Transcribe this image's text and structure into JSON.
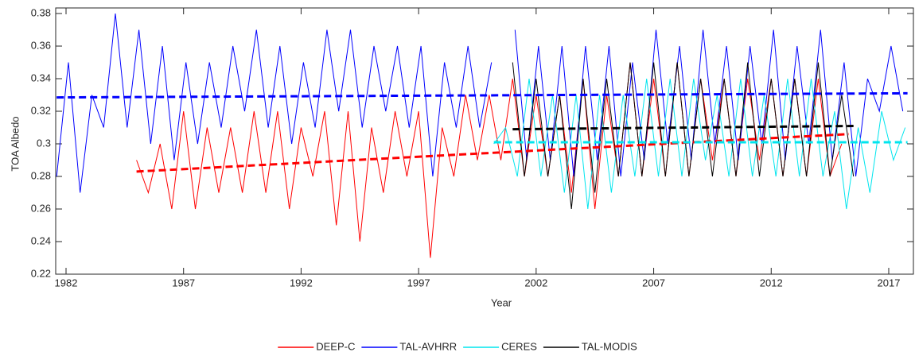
{
  "chart_data": {
    "type": "line",
    "x_label": "Year",
    "y_label": "TOA Albedo",
    "xlim": [
      1981.56,
      2018.05
    ],
    "ylim": [
      0.22,
      0.38
    ],
    "xticks": [
      1982,
      1987,
      1992,
      1997,
      2002,
      2007,
      2012,
      2017
    ],
    "yticks": [
      0.22,
      0.24,
      0.26,
      0.28,
      0.3,
      0.32,
      0.34,
      0.36,
      0.38
    ],
    "grid": false,
    "legend": "bottom",
    "series": [
      {
        "name": "DEEP-C",
        "color": "#ff0000",
        "x": [
          1985.0,
          1985.5,
          1986.0,
          1986.5,
          1987.0,
          1987.5,
          1988.0,
          1988.5,
          1989.0,
          1989.5,
          1990.0,
          1990.5,
          1991.0,
          1991.5,
          1992.0,
          1992.5,
          1993.0,
          1993.5,
          1994.0,
          1994.5,
          1995.0,
          1995.5,
          1996.0,
          1996.5,
          1997.0,
          1997.5,
          1998.0,
          1998.5,
          1999.0,
          1999.5,
          2000.0,
          2000.5,
          2001.0,
          2001.5,
          2002.0,
          2002.5,
          2003.0,
          2003.5,
          2004.0,
          2004.5,
          2005.0,
          2005.5,
          2006.0,
          2006.5,
          2007.0,
          2007.5,
          2008.0,
          2008.5,
          2009.0,
          2009.5,
          2010.0,
          2010.5,
          2011.0,
          2011.5,
          2012.0,
          2012.5,
          2013.0,
          2013.5,
          2014.0,
          2014.5,
          2015.0
        ],
        "values": [
          0.29,
          0.27,
          0.3,
          0.26,
          0.32,
          0.26,
          0.31,
          0.27,
          0.31,
          0.27,
          0.32,
          0.27,
          0.32,
          0.26,
          0.31,
          0.28,
          0.32,
          0.25,
          0.32,
          0.24,
          0.31,
          0.27,
          0.32,
          0.28,
          0.32,
          0.23,
          0.31,
          0.28,
          0.33,
          0.29,
          0.33,
          0.29,
          0.34,
          0.28,
          0.33,
          0.28,
          0.33,
          0.27,
          0.34,
          0.26,
          0.33,
          0.28,
          0.35,
          0.28,
          0.34,
          0.28,
          0.35,
          0.28,
          0.34,
          0.29,
          0.34,
          0.28,
          0.34,
          0.29,
          0.34,
          0.28,
          0.34,
          0.28,
          0.34,
          0.28,
          0.3
        ]
      },
      {
        "name": "TAL-AVHRR",
        "color": "#0000ff",
        "x": [
          1981.6,
          1982.1,
          1982.6,
          1983.1,
          1983.6,
          1984.1,
          1984.6,
          1985.1,
          1985.6,
          1986.1,
          1986.6,
          1987.1,
          1987.6,
          1988.1,
          1988.6,
          1989.1,
          1989.6,
          1990.1,
          1990.6,
          1991.1,
          1991.6,
          1992.1,
          1992.6,
          1993.1,
          1993.6,
          1994.1,
          1994.6,
          1995.1,
          1995.6,
          1996.1,
          1996.6,
          1997.1,
          1997.6,
          1998.1,
          1998.6,
          1999.1,
          1999.6,
          2000.1,
          2000.6,
          2001.1,
          2001.6,
          2002.1,
          2002.6,
          2003.1,
          2003.6,
          2004.1,
          2004.6,
          2005.1,
          2005.6,
          2006.1,
          2006.6,
          2007.1,
          2007.6,
          2008.1,
          2008.6,
          2009.1,
          2009.6,
          2010.1,
          2010.6,
          2011.1,
          2011.6,
          2012.1,
          2012.6,
          2013.1,
          2013.6,
          2014.1,
          2014.6,
          2015.1,
          2015.6,
          2016.1,
          2016.6,
          2017.1,
          2017.6
        ],
        "values": [
          0.28,
          0.35,
          0.27,
          0.33,
          0.31,
          0.38,
          0.31,
          0.37,
          0.3,
          0.36,
          0.29,
          0.35,
          0.3,
          0.35,
          0.31,
          0.36,
          0.32,
          0.37,
          0.31,
          0.36,
          0.3,
          0.35,
          0.31,
          0.37,
          0.32,
          0.37,
          0.31,
          0.36,
          0.32,
          0.36,
          0.31,
          0.36,
          0.28,
          0.35,
          0.31,
          0.36,
          0.31,
          0.35,
          null,
          0.37,
          0.29,
          0.36,
          0.29,
          0.36,
          0.28,
          0.36,
          0.29,
          0.36,
          0.28,
          0.35,
          0.29,
          0.37,
          0.3,
          0.36,
          0.29,
          0.37,
          0.3,
          0.36,
          0.29,
          0.36,
          0.3,
          0.37,
          0.29,
          0.36,
          0.3,
          0.37,
          0.29,
          0.35,
          0.28,
          0.34,
          0.32,
          0.36,
          0.32
        ]
      },
      {
        "name": "CERES",
        "color": "#00e5ee",
        "x": [
          2000.2,
          2000.7,
          2001.2,
          2001.7,
          2002.2,
          2002.7,
          2003.2,
          2003.7,
          2004.2,
          2004.7,
          2005.2,
          2005.7,
          2006.2,
          2006.7,
          2007.2,
          2007.7,
          2008.2,
          2008.7,
          2009.2,
          2009.7,
          2010.2,
          2010.7,
          2011.2,
          2011.7,
          2012.2,
          2012.7,
          2013.2,
          2013.7,
          2014.2,
          2014.7,
          2015.2,
          2015.7,
          2016.2,
          2016.7,
          2017.2,
          2017.7
        ],
        "values": [
          0.3,
          0.31,
          0.28,
          0.34,
          0.28,
          0.33,
          0.27,
          0.33,
          0.26,
          0.33,
          0.27,
          0.33,
          0.28,
          0.34,
          0.28,
          0.34,
          0.28,
          0.34,
          0.29,
          0.33,
          0.28,
          0.34,
          0.28,
          0.33,
          0.28,
          0.34,
          0.28,
          0.34,
          0.28,
          0.32,
          0.26,
          0.31,
          0.27,
          0.32,
          0.29,
          0.31
        ]
      },
      {
        "name": "TAL-MODIS",
        "color": "#000000",
        "x": [
          2001.0,
          2001.5,
          2002.0,
          2002.5,
          2003.0,
          2003.5,
          2004.0,
          2004.5,
          2005.0,
          2005.5,
          2006.0,
          2006.5,
          2007.0,
          2007.5,
          2008.0,
          2008.5,
          2009.0,
          2009.5,
          2010.0,
          2010.5,
          2011.0,
          2011.5,
          2012.0,
          2012.5,
          2013.0,
          2013.5,
          2014.0,
          2014.5,
          2015.0,
          2015.5
        ],
        "values": [
          0.35,
          0.28,
          0.34,
          0.28,
          0.33,
          0.26,
          0.34,
          0.27,
          0.34,
          0.28,
          0.35,
          0.28,
          0.35,
          0.28,
          0.35,
          0.28,
          0.34,
          0.28,
          0.34,
          0.28,
          0.35,
          0.28,
          0.34,
          0.28,
          0.34,
          0.28,
          0.35,
          0.28,
          0.33,
          0.28
        ]
      }
    ],
    "trend_lines": [
      {
        "color": "#0000ff",
        "x": [
          1981.6,
          2017.8
        ],
        "values": [
          0.3285,
          0.331
        ]
      },
      {
        "color": "#ff0000",
        "x": [
          1985.0,
          2015.3
        ],
        "values": [
          0.283,
          0.306
        ]
      },
      {
        "color": "#00e5ee",
        "x": [
          2000.2,
          2017.8
        ],
        "values": [
          0.301,
          0.301
        ]
      },
      {
        "color": "#000000",
        "x": [
          2001.0,
          2015.5
        ],
        "values": [
          0.309,
          0.311
        ]
      }
    ]
  }
}
